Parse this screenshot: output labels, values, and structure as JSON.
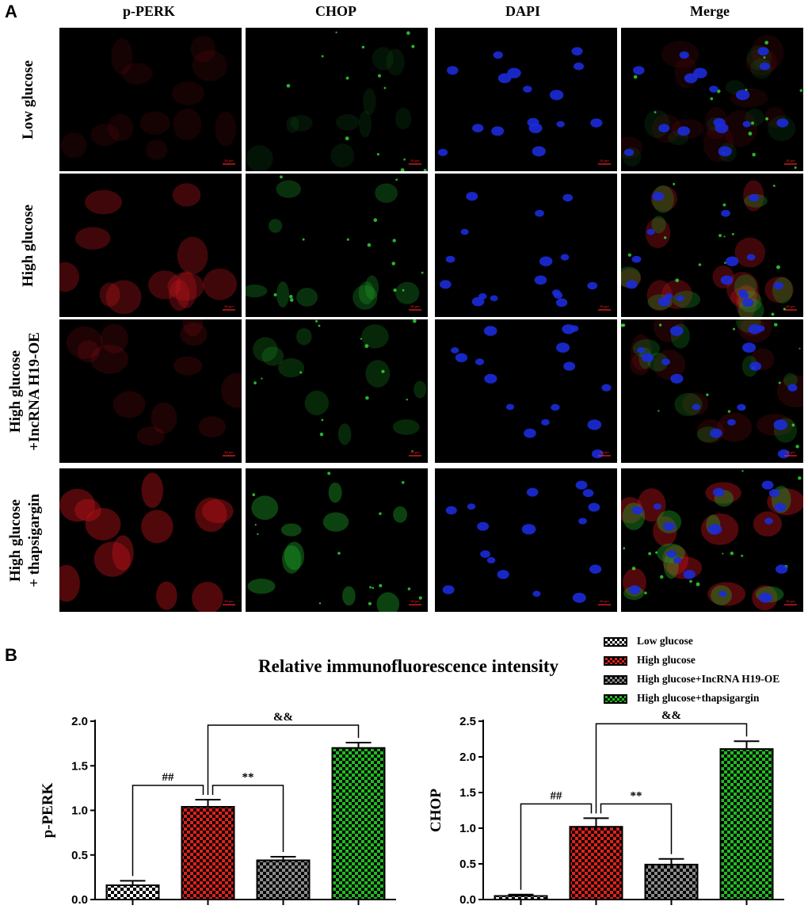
{
  "panel_a": {
    "letter": "A",
    "columns": [
      "p-PERK",
      "CHOP",
      "DAPI",
      "Merge"
    ],
    "rows": [
      {
        "line1": "Low glucose",
        "line2": ""
      },
      {
        "line1": "High glucose",
        "line2": ""
      },
      {
        "line1": "High glucose",
        "line2": "+IncRNA H19-OE"
      },
      {
        "line1": "High glucose",
        "line2": "+ thapsigargin"
      }
    ],
    "scale_bar_label": "50 μm"
  },
  "panel_b": {
    "letter": "B",
    "title": "Relative immunofluorescence intensity",
    "legend": [
      {
        "label": "Low glucose",
        "pattern": "white"
      },
      {
        "label": "High glucose",
        "pattern": "red"
      },
      {
        "label": "High glucose+IncRNA H19-OE",
        "pattern": "gray"
      },
      {
        "label": "High glucose+thapsigargin",
        "pattern": "green"
      }
    ]
  },
  "chart_data": [
    {
      "type": "bar",
      "ylabel": "p-PERK",
      "ylim": [
        0,
        2.0
      ],
      "yticks": [
        "0.0",
        "0.5",
        "1.0",
        "1.5",
        "2.0"
      ],
      "categories": [
        "Low glucose",
        "High glucose",
        "High glucose+IncRNA H19-OE",
        "High glucose+thapsigargin"
      ],
      "values": [
        0.16,
        1.04,
        0.44,
        1.7
      ],
      "errors": [
        0.05,
        0.08,
        0.04,
        0.06
      ],
      "colors": [
        "#ffffff",
        "#e0201c",
        "#8c8c8c",
        "#22bb22"
      ],
      "annotations": [
        {
          "label": "##",
          "from": 0,
          "to": 1
        },
        {
          "label": "**",
          "from": 1,
          "to": 2
        },
        {
          "label": "&&",
          "from": 1,
          "to": 3
        }
      ]
    },
    {
      "type": "bar",
      "ylabel": "CHOP",
      "ylim": [
        0,
        2.5
      ],
      "yticks": [
        "0.0",
        "0.5",
        "1.0",
        "1.5",
        "2.0",
        "2.5"
      ],
      "categories": [
        "Low glucose",
        "High glucose",
        "High glucose+IncRNA H19-OE",
        "High glucose+thapsigargin"
      ],
      "values": [
        0.05,
        1.02,
        0.49,
        2.11
      ],
      "errors": [
        0.02,
        0.12,
        0.08,
        0.11
      ],
      "colors": [
        "#ffffff",
        "#e0201c",
        "#8c8c8c",
        "#22bb22"
      ],
      "annotations": [
        {
          "label": "##",
          "from": 0,
          "to": 1
        },
        {
          "label": "**",
          "from": 1,
          "to": 2
        },
        {
          "label": "&&",
          "from": 1,
          "to": 3
        }
      ]
    }
  ]
}
